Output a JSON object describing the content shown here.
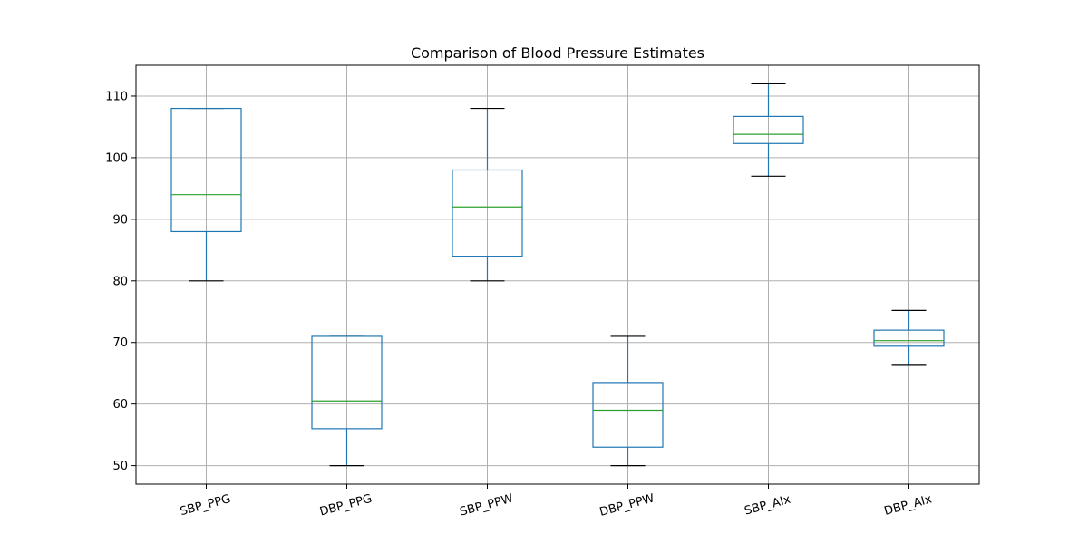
{
  "chart_data": {
    "type": "box",
    "title": "Comparison of Blood Pressure Estimates",
    "xlabel": "",
    "ylabel": "",
    "ylim": [
      47,
      115
    ],
    "yticks": [
      50,
      60,
      70,
      80,
      90,
      100,
      110
    ],
    "grid": true,
    "categories": [
      "SBP_PPG",
      "DBP_PPG",
      "SBP_PPW",
      "DBP_PPW",
      "SBP_AIx",
      "DBP_AIx"
    ],
    "boxes": [
      {
        "name": "SBP_PPG",
        "whisker_low": 80,
        "q1": 88,
        "median": 94,
        "q3": 108,
        "whisker_high": 108
      },
      {
        "name": "DBP_PPG",
        "whisker_low": 50,
        "q1": 56,
        "median": 60.5,
        "q3": 71,
        "whisker_high": 71
      },
      {
        "name": "SBP_PPW",
        "whisker_low": 80,
        "q1": 84,
        "median": 92,
        "q3": 98,
        "whisker_high": 108
      },
      {
        "name": "DBP_PPW",
        "whisker_low": 50,
        "q1": 53,
        "median": 59,
        "q3": 63.5,
        "whisker_high": 71
      },
      {
        "name": "SBP_AIx",
        "whisker_low": 97,
        "q1": 102.3,
        "median": 103.8,
        "q3": 106.7,
        "whisker_high": 112
      },
      {
        "name": "DBP_AIx",
        "whisker_low": 66.3,
        "q1": 69.4,
        "median": 70.3,
        "q3": 72,
        "whisker_high": 75.2
      }
    ],
    "colors": {
      "box": "#1f77b4",
      "median": "#2ca02c",
      "whisker_cap": "#000000",
      "grid": "#b0b0b0"
    }
  }
}
